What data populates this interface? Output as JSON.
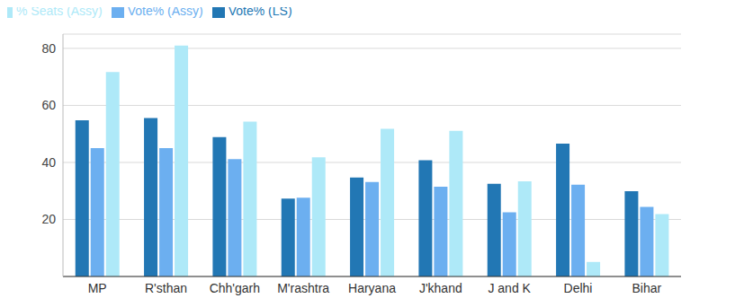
{
  "chart_data": {
    "type": "bar",
    "categories": [
      "MP",
      "R'sthan",
      "Chh'garh",
      "M'rashtra",
      "Haryana",
      "J'khand",
      "J and K",
      "Delhi",
      "Bihar"
    ],
    "series": [
      {
        "name": "Vote% (LS)",
        "color": "#2277b4",
        "values": [
          54.8,
          55.6,
          48.9,
          27.3,
          34.7,
          40.8,
          32.5,
          46.6,
          29.9
        ]
      },
      {
        "name": "Vote% (Assy)",
        "color": "#6caff0",
        "values": [
          45,
          45,
          41.2,
          27.6,
          33.1,
          31.5,
          22.5,
          32.2,
          24.4
        ]
      },
      {
        "name": "% Seats (Assy)",
        "color": "#aee9f8",
        "values": [
          71.7,
          81,
          54.3,
          41.8,
          51.8,
          51.1,
          33.4,
          5.1,
          21.9
        ]
      }
    ],
    "ylim": [
      0,
      85
    ],
    "yticks": [
      20,
      40,
      60,
      80
    ],
    "grid": true,
    "legend": "top-left"
  }
}
